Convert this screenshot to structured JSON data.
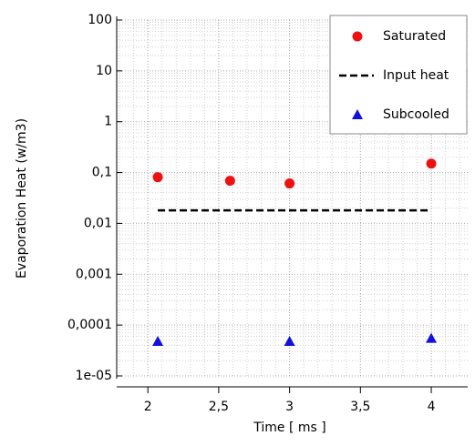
{
  "chart_data": {
    "type": "scatter",
    "xlabel": "Time [ ms ]",
    "ylabel": "Evaporation Heat (w/m3)",
    "xlim": [
      1.78,
      4.27
    ],
    "xticks": [
      2,
      {
        "value": 2.5,
        "label": "2,5"
      },
      3,
      {
        "value": 3.5,
        "label": "3,5"
      },
      4
    ],
    "ylim": [
      1e-05,
      100
    ],
    "ylog": true,
    "yticks": [
      {
        "value": 1e-05,
        "label": "1e-05"
      },
      {
        "value": 0.0001,
        "label": "0,0001"
      },
      {
        "value": 0.001,
        "label": "0,001"
      },
      {
        "value": 0.01,
        "label": "0,01"
      },
      {
        "value": 0.1,
        "label": "0,1"
      },
      1,
      10,
      100
    ],
    "grid": true,
    "legend": "upper right",
    "series": [
      {
        "name": "Saturated",
        "color": "#ee1111",
        "marker": "circle",
        "x": [
          2.07,
          2.58,
          3.0,
          4.0
        ],
        "values": [
          0.081,
          0.069,
          0.061,
          0.15
        ]
      },
      {
        "name": "Input heat",
        "color": "#000000",
        "marker": "dashed-line",
        "x": [
          2.07,
          4.0
        ],
        "values": [
          0.018,
          0.018
        ]
      },
      {
        "name": "Subcooled",
        "color": "#1111dd",
        "marker": "triangle",
        "x": [
          2.07,
          3.0,
          4.0
        ],
        "values": [
          4.8e-05,
          4.8e-05,
          5.5e-05
        ]
      }
    ]
  }
}
